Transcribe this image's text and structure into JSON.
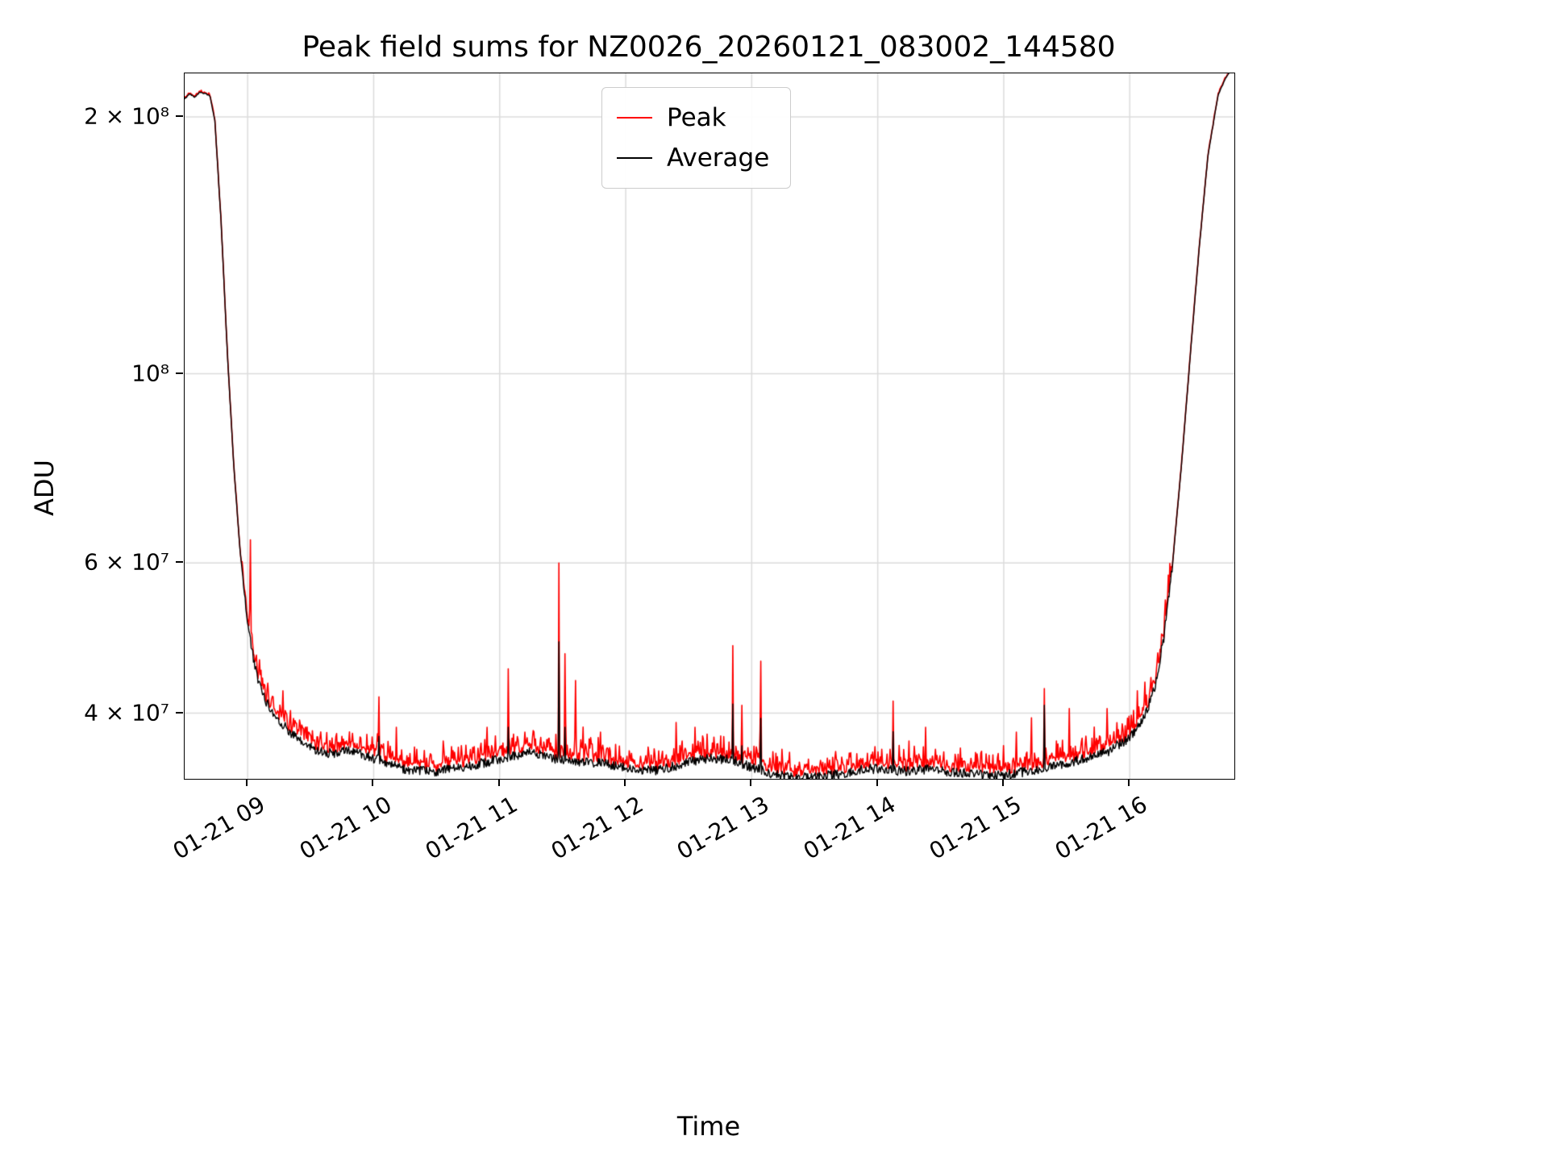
{
  "figure": {
    "title": "Peak field sums for NZ0026_20260121_083002_144580",
    "xlabel": "Time",
    "ylabel": "ADU"
  },
  "legend": {
    "items": [
      {
        "label": "Peak",
        "color": "#ff0000"
      },
      {
        "label": "Average",
        "color": "#000000"
      }
    ]
  },
  "chart_data": {
    "type": "line",
    "title": "Peak field sums for NZ0026_20260121_083002_144580",
    "xlabel": "Time",
    "ylabel": "ADU",
    "y_scale": "log",
    "grid": true,
    "legend_position": "upper center",
    "x_axis": {
      "unit": "time of day on 01-21",
      "range_hours": [
        8.5,
        16.83
      ],
      "ticks": [
        {
          "hour": 9,
          "label": "01-21 09"
        },
        {
          "hour": 10,
          "label": "01-21 10"
        },
        {
          "hour": 11,
          "label": "01-21 11"
        },
        {
          "hour": 12,
          "label": "01-21 12"
        },
        {
          "hour": 13,
          "label": "01-21 13"
        },
        {
          "hour": 14,
          "label": "01-21 14"
        },
        {
          "hour": 15,
          "label": "01-21 15"
        },
        {
          "hour": 16,
          "label": "01-21 16"
        }
      ]
    },
    "y_axis": {
      "range": [
        33500000.0,
        225000000.0
      ],
      "ticks": [
        {
          "value": 200000000.0,
          "label": "2 × 10⁸"
        },
        {
          "value": 100000000.0,
          "label": "10⁸"
        },
        {
          "value": 60000000.0,
          "label": "6 × 10⁷"
        },
        {
          "value": 40000000.0,
          "label": "4 × 10⁷"
        }
      ]
    },
    "series": [
      {
        "name": "Peak",
        "color": "#ff0000",
        "role": "peak",
        "line_width": 1.6
      },
      {
        "name": "Average",
        "color": "#000000",
        "role": "average",
        "line_width": 1.4
      }
    ],
    "baseline_hours_adu": [
      [
        8.5,
        210000000.0
      ],
      [
        8.54,
        213000000.0
      ],
      [
        8.58,
        211000000.0
      ],
      [
        8.62,
        214000000.0
      ],
      [
        8.66,
        213000000.0
      ],
      [
        8.7,
        212000000.0
      ],
      [
        8.74,
        198000000.0
      ],
      [
        8.79,
        150000000.0
      ],
      [
        8.84,
        105000000.0
      ],
      [
        8.89,
        78000000.0
      ],
      [
        8.94,
        62000000.0
      ],
      [
        9.0,
        51000000.0
      ],
      [
        9.06,
        45000000.0
      ],
      [
        9.12,
        42000000.0
      ],
      [
        9.2,
        40000000.0
      ],
      [
        9.3,
        38500000.0
      ],
      [
        9.42,
        37000000.0
      ],
      [
        9.55,
        36200000.0
      ],
      [
        9.68,
        35800000.0
      ],
      [
        9.8,
        36200000.0
      ],
      [
        9.92,
        35800000.0
      ],
      [
        10.05,
        35200000.0
      ],
      [
        10.2,
        34500000.0
      ],
      [
        10.35,
        34200000.0
      ],
      [
        10.5,
        34200000.0
      ],
      [
        10.65,
        34500000.0
      ],
      [
        10.8,
        34800000.0
      ],
      [
        10.95,
        35200000.0
      ],
      [
        11.1,
        35600000.0
      ],
      [
        11.25,
        36000000.0
      ],
      [
        11.35,
        35600000.0
      ],
      [
        11.5,
        35200000.0
      ],
      [
        11.65,
        35000000.0
      ],
      [
        11.8,
        35000000.0
      ],
      [
        11.95,
        34600000.0
      ],
      [
        12.1,
        34300000.0
      ],
      [
        12.25,
        34300000.0
      ],
      [
        12.4,
        34700000.0
      ],
      [
        12.55,
        35200000.0
      ],
      [
        12.7,
        35400000.0
      ],
      [
        12.85,
        35200000.0
      ],
      [
        13.0,
        34600000.0
      ],
      [
        13.15,
        34000000.0
      ],
      [
        13.3,
        33700000.0
      ],
      [
        13.45,
        33600000.0
      ],
      [
        13.6,
        33800000.0
      ],
      [
        13.75,
        34000000.0
      ],
      [
        13.9,
        34400000.0
      ],
      [
        14.05,
        34400000.0
      ],
      [
        14.2,
        34200000.0
      ],
      [
        14.35,
        34400000.0
      ],
      [
        14.5,
        34200000.0
      ],
      [
        14.65,
        34100000.0
      ],
      [
        14.8,
        33900000.0
      ],
      [
        14.95,
        33800000.0
      ],
      [
        15.1,
        34000000.0
      ],
      [
        15.25,
        34300000.0
      ],
      [
        15.4,
        34700000.0
      ],
      [
        15.55,
        35100000.0
      ],
      [
        15.7,
        35500000.0
      ],
      [
        15.85,
        36200000.0
      ],
      [
        15.95,
        37000000.0
      ],
      [
        16.05,
        38200000.0
      ],
      [
        16.13,
        40000000.0
      ],
      [
        16.2,
        43000000.0
      ],
      [
        16.27,
        49000000.0
      ],
      [
        16.34,
        60000000.0
      ],
      [
        16.41,
        78000000.0
      ],
      [
        16.48,
        105000000.0
      ],
      [
        16.55,
        140000000.0
      ],
      [
        16.62,
        180000000.0
      ],
      [
        16.7,
        212000000.0
      ],
      [
        16.76,
        222000000.0
      ],
      [
        16.83,
        230000000.0
      ]
    ],
    "peak_spikes_hours_adu": [
      [
        9.02,
        68000000.0
      ],
      [
        9.2,
        44500000.0
      ],
      [
        9.28,
        42500000.0
      ],
      [
        9.45,
        39500000.0
      ],
      [
        9.6,
        38500000.0
      ],
      [
        9.75,
        40000000.0
      ],
      [
        9.9,
        39500000.0
      ],
      [
        10.04,
        44500000.0
      ],
      [
        10.18,
        38500000.0
      ],
      [
        10.4,
        38500000.0
      ],
      [
        10.55,
        39500000.0
      ],
      [
        10.7,
        38000000.0
      ],
      [
        10.9,
        38500000.0
      ],
      [
        11.07,
        48000000.0
      ],
      [
        11.2,
        38000000.0
      ],
      [
        11.47,
        60000000.0
      ],
      [
        11.52,
        50000000.0
      ],
      [
        11.6,
        46500000.0
      ],
      [
        11.66,
        41000000.0
      ],
      [
        11.8,
        38000000.0
      ],
      [
        12.0,
        37500000.0
      ],
      [
        12.2,
        37000000.0
      ],
      [
        12.4,
        39000000.0
      ],
      [
        12.55,
        38500000.0
      ],
      [
        12.7,
        37500000.0
      ],
      [
        12.85,
        48000000.0
      ],
      [
        12.92,
        43500000.0
      ],
      [
        13.07,
        49000000.0
      ],
      [
        13.3,
        36000000.0
      ],
      [
        13.5,
        36500000.0
      ],
      [
        13.7,
        37000000.0
      ],
      [
        13.85,
        37500000.0
      ],
      [
        14.0,
        38000000.0
      ],
      [
        14.12,
        44000000.0
      ],
      [
        14.25,
        39500000.0
      ],
      [
        14.38,
        38500000.0
      ],
      [
        14.55,
        37000000.0
      ],
      [
        14.7,
        36500000.0
      ],
      [
        14.85,
        37000000.0
      ],
      [
        15.0,
        39000000.0
      ],
      [
        15.1,
        38000000.0
      ],
      [
        15.22,
        39500000.0
      ],
      [
        15.32,
        45500000.0
      ],
      [
        15.42,
        39500000.0
      ],
      [
        15.52,
        40500000.0
      ],
      [
        15.62,
        39500000.0
      ],
      [
        15.72,
        41000000.0
      ],
      [
        15.82,
        40500000.0
      ],
      [
        15.9,
        41500000.0
      ],
      [
        15.98,
        42000000.0
      ],
      [
        16.06,
        42500000.0
      ],
      [
        16.12,
        43500000.0
      ]
    ],
    "average_spikes_hours_adu": [
      [
        10.04,
        40000000.0
      ],
      [
        11.07,
        41000000.0
      ],
      [
        11.47,
        48500000.0
      ],
      [
        11.52,
        41000000.0
      ],
      [
        12.85,
        41000000.0
      ],
      [
        12.92,
        39000000.0
      ],
      [
        13.07,
        42000000.0
      ],
      [
        14.12,
        40500000.0
      ],
      [
        15.32,
        43500000.0
      ],
      [
        15.9,
        39500000.0
      ]
    ],
    "noise": {
      "seed": 42,
      "sample_step_hours": 0.006,
      "average_frac": 0.013,
      "peak_offset_frac": 0.012,
      "peak_extra_frac": 0.05,
      "quiet_above_adu": 60000000.0,
      "quiet_scale": 0.12,
      "spike_width_hours": 0.008
    }
  },
  "style": {
    "grid_color": "#dcdcdc",
    "spine_color": "#000000",
    "background": "#ffffff"
  }
}
